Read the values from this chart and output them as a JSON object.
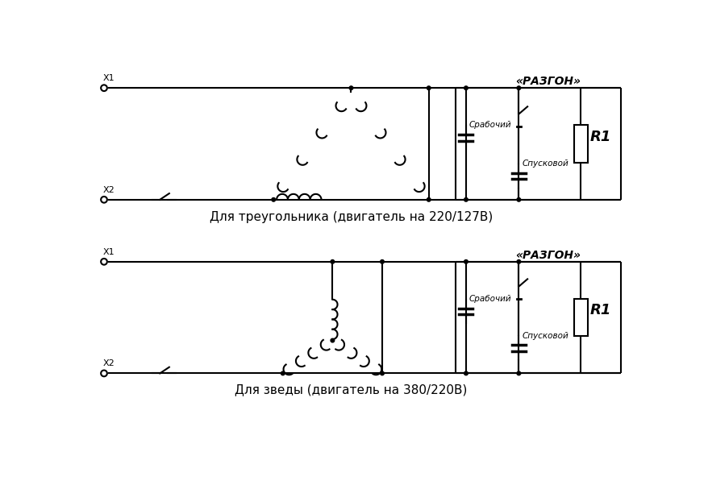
{
  "bg_color": "#ffffff",
  "line_color": "#000000",
  "title1": "Для треугольника (двигатель на 220/127В)",
  "title2": "Для зведы (двигатель на 380/220В)",
  "label_x1": "X1",
  "label_x2": "X2",
  "razgon_label": "«РАЗГОН»",
  "srabochiy_label": "Срабочий",
  "spuskovoy_label": "Спусковой",
  "r1_label": "R1"
}
